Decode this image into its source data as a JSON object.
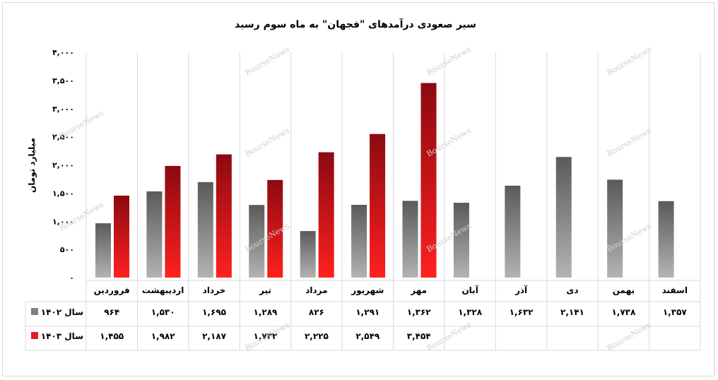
{
  "chart_data": {
    "type": "bar",
    "title": "سیر صعودی درآمدهای \"فجهان\" به ماه سوم رسید",
    "ylabel": "میلیارد تومان",
    "ylim": [
      0,
      4000
    ],
    "yticks": [
      0,
      500,
      1000,
      1500,
      2000,
      2500,
      3000,
      3500,
      4000
    ],
    "ytick_labels": [
      "۰",
      "۵۰۰",
      "۱,۰۰۰",
      "۱,۵۰۰",
      "۲,۰۰۰",
      "۲,۵۰۰",
      "۳,۰۰۰",
      "۳,۵۰۰",
      "۴,۰۰۰"
    ],
    "grid": "vertical category separators",
    "legend": "data table rows at bottom",
    "categories": [
      "فروردین",
      "اردیبهشت",
      "خرداد",
      "تیر",
      "مرداد",
      "شهریور",
      "مهر",
      "آبان",
      "آذر",
      "دی",
      "بهمن",
      "اسفند"
    ],
    "series": [
      {
        "name": "سال ۱۴۰۲",
        "color": "#808080",
        "values": [
          964,
          1530,
          1695,
          1289,
          826,
          1291,
          1362,
          1328,
          1632,
          2141,
          1738,
          1357
        ],
        "labels": [
          "۹۶۴",
          "۱,۵۳۰",
          "۱,۶۹۵",
          "۱,۲۸۹",
          "۸۲۶",
          "۱,۲۹۱",
          "۱,۳۶۲",
          "۱,۳۲۸",
          "۱,۶۳۲",
          "۲,۱۴۱",
          "۱,۷۳۸",
          "۱,۳۵۷"
        ]
      },
      {
        "name": "سال ۱۴۰۳",
        "color": "#e31e24",
        "values": [
          1455,
          1982,
          2187,
          1733,
          2225,
          2549,
          3454,
          null,
          null,
          null,
          null,
          null
        ],
        "labels": [
          "۱,۴۵۵",
          "۱,۹۸۲",
          "۲,۱۸۷",
          "۱,۷۳۳",
          "۲,۲۲۵",
          "۲,۵۴۹",
          "۳,۴۵۴",
          "",
          "",
          "",
          "",
          ""
        ]
      }
    ]
  },
  "watermark_text": "BourseNews"
}
